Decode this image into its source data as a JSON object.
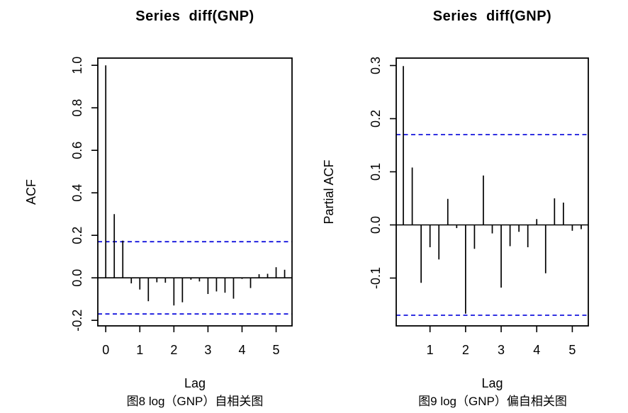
{
  "figure": {
    "background": "#ffffff",
    "axis_color": "#000000",
    "text_color": "#000000"
  },
  "chart_data": [
    {
      "type": "bar",
      "subtype": "acf-stem-plot",
      "title": "Series  diff(GNP)",
      "xlabel": "Lag",
      "ylabel": "ACF",
      "caption": "图8 log（GNP）自相关图",
      "x": [
        0,
        0.25,
        0.5,
        0.75,
        1,
        1.25,
        1.5,
        1.75,
        2,
        2.25,
        2.5,
        2.75,
        3,
        3.25,
        3.5,
        3.75,
        4,
        4.25,
        4.5,
        4.75,
        5,
        5.25
      ],
      "values": [
        1.0,
        0.3,
        0.175,
        -0.026,
        -0.055,
        -0.11,
        -0.021,
        -0.023,
        -0.13,
        -0.115,
        -0.009,
        -0.017,
        -0.076,
        -0.064,
        -0.07,
        -0.098,
        -0.005,
        -0.048,
        0.017,
        0.019,
        0.05,
        0.038
      ],
      "conf_level": 0.17,
      "conf_line_style": "dashed",
      "conf_color": "#1515dd",
      "bar_color": "#000000",
      "grid": false,
      "xticks": [
        0,
        1,
        2,
        3,
        4,
        5
      ],
      "ytick_values": [
        1.0,
        0.8,
        0.6,
        0.4,
        0.2,
        0.0,
        -0.2
      ],
      "ytick_labels": [
        "1.0",
        "0.8",
        "0.6",
        "0.4",
        "0.2",
        "0.0",
        "-0.2"
      ],
      "xlim": [
        -0.233,
        5.467
      ],
      "ylim": [
        -0.226,
        1.034
      ]
    },
    {
      "type": "bar",
      "subtype": "pacf-stem-plot",
      "title": "Series  diff(GNP)",
      "xlabel": "Lag",
      "ylabel": "Partial ACF",
      "caption": "图9 log（GNP）偏自相关图",
      "x": [
        0.25,
        0.5,
        0.75,
        1,
        1.25,
        1.5,
        1.75,
        2,
        2.25,
        2.5,
        2.75,
        3,
        3.25,
        3.5,
        3.75,
        4,
        4.25,
        4.5,
        4.75,
        5,
        5.25
      ],
      "values": [
        0.299,
        0.108,
        -0.109,
        -0.042,
        -0.065,
        0.049,
        -0.006,
        -0.167,
        -0.045,
        0.093,
        -0.016,
        -0.118,
        -0.04,
        -0.013,
        -0.042,
        0.011,
        -0.091,
        0.05,
        0.042,
        -0.011,
        -0.008
      ],
      "conf_level": 0.17,
      "conf_line_style": "dashed",
      "conf_color": "#1515dd",
      "bar_color": "#000000",
      "grid": false,
      "xticks": [
        1,
        2,
        3,
        4,
        5
      ],
      "ytick_values": [
        0.3,
        0.2,
        0.1,
        0.0,
        -0.1
      ],
      "ytick_labels": [
        "0.3",
        "0.2",
        "0.1",
        "0.0",
        "-0.1"
      ],
      "xlim": [
        0.05,
        5.45
      ],
      "ylim": [
        -0.19,
        0.314
      ]
    }
  ]
}
